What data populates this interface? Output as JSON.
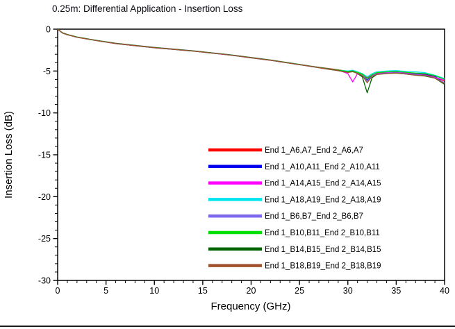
{
  "chart_data": {
    "type": "line",
    "title": "0.25m: Differential Application - Insertion Loss",
    "xlabel": "Frequency (GHz)",
    "ylabel": "Insertion Loss (dB)",
    "xlim": [
      0,
      40
    ],
    "ylim": [
      -30,
      0
    ],
    "xticks": [
      0,
      5,
      10,
      15,
      20,
      25,
      30,
      35,
      40
    ],
    "yticks": [
      0,
      -5,
      -10,
      -15,
      -20,
      -25,
      -30
    ],
    "x_minor_step": 1,
    "y_minor_step": 1,
    "grid": false,
    "legend_position": "inside-bottom-right",
    "background_color": "#ffffff",
    "axis_color": "#000000",
    "x": [
      0,
      0.5,
      1,
      2,
      4,
      6,
      8,
      10,
      12,
      14,
      16,
      18,
      20,
      22,
      24,
      26,
      28,
      29,
      30,
      30.5,
      31,
      31.5,
      32,
      32.5,
      33,
      34,
      35,
      36,
      37,
      38,
      39,
      40
    ],
    "series": [
      {
        "name": "End 1_A6,A7_End 2_A6,A7",
        "color": "#ff0000",
        "values": [
          0,
          -0.45,
          -0.65,
          -0.95,
          -1.35,
          -1.7,
          -1.95,
          -2.2,
          -2.4,
          -2.6,
          -2.85,
          -3.1,
          -3.4,
          -3.7,
          -4.05,
          -4.4,
          -4.7,
          -4.85,
          -5.05,
          -4.95,
          -5.15,
          -5.35,
          -5.8,
          -5.45,
          -5.25,
          -5.15,
          -5.15,
          -5.25,
          -5.35,
          -5.45,
          -5.7,
          -6.2
        ]
      },
      {
        "name": "End 1_A10,A11_End 2_A10,A11",
        "color": "#0000ee",
        "values": [
          0,
          -0.46,
          -0.66,
          -0.96,
          -1.36,
          -1.72,
          -1.97,
          -2.22,
          -2.42,
          -2.62,
          -2.87,
          -3.12,
          -3.42,
          -3.72,
          -4.07,
          -4.42,
          -4.78,
          -4.95,
          -5.15,
          -5.05,
          -5.25,
          -5.45,
          -6.1,
          -5.55,
          -5.35,
          -5.25,
          -5.1,
          -5.2,
          -5.3,
          -5.35,
          -5.6,
          -6.5
        ]
      },
      {
        "name": "End 1_A14,A15_End 2_A14,A15",
        "color": "#ff00ff",
        "values": [
          0,
          -0.44,
          -0.64,
          -0.94,
          -1.34,
          -1.68,
          -1.93,
          -2.18,
          -2.38,
          -2.58,
          -2.83,
          -3.08,
          -3.38,
          -3.68,
          -4.03,
          -4.38,
          -4.72,
          -4.88,
          -5.3,
          -6.3,
          -5.3,
          -5.45,
          -5.9,
          -5.5,
          -5.3,
          -5.2,
          -5.15,
          -5.25,
          -5.4,
          -5.5,
          -5.75,
          -6.1
        ]
      },
      {
        "name": "End 1_A18,A19_End 2_A18,A19",
        "color": "#00e5ee",
        "values": [
          0,
          -0.45,
          -0.65,
          -0.95,
          -1.35,
          -1.7,
          -1.95,
          -2.2,
          -2.4,
          -2.6,
          -2.85,
          -3.1,
          -3.4,
          -3.7,
          -4.05,
          -4.4,
          -4.75,
          -4.9,
          -5.0,
          -4.9,
          -5.1,
          -5.3,
          -5.7,
          -5.3,
          -5.1,
          -5.0,
          -4.95,
          -5.05,
          -5.1,
          -5.2,
          -5.5,
          -5.9
        ]
      },
      {
        "name": "End 1_B6,B7_End 2_B6,B7",
        "color": "#7b68ee",
        "values": [
          0,
          -0.46,
          -0.66,
          -0.96,
          -1.36,
          -1.71,
          -1.96,
          -2.21,
          -2.41,
          -2.61,
          -2.86,
          -3.11,
          -3.41,
          -3.71,
          -4.06,
          -4.41,
          -4.76,
          -4.92,
          -5.12,
          -5.02,
          -5.22,
          -5.5,
          -6.2,
          -5.6,
          -5.35,
          -5.25,
          -5.2,
          -5.3,
          -5.45,
          -5.5,
          -5.8,
          -6.4
        ]
      },
      {
        "name": "End 1_B10,B11_End 2_B10,B11",
        "color": "#00dd00",
        "values": [
          0,
          -0.44,
          -0.64,
          -0.94,
          -1.34,
          -1.69,
          -1.94,
          -2.19,
          -2.39,
          -2.59,
          -2.84,
          -3.09,
          -3.39,
          -3.69,
          -4.04,
          -4.39,
          -4.74,
          -4.89,
          -5.08,
          -4.98,
          -5.18,
          -5.38,
          -5.9,
          -5.45,
          -5.2,
          -5.1,
          -5.05,
          -5.15,
          -5.25,
          -5.3,
          -5.55,
          -6.0
        ]
      },
      {
        "name": "End 1_B14,B15_End 2_B14,B15",
        "color": "#006400",
        "values": [
          0,
          -0.45,
          -0.65,
          -0.95,
          -1.35,
          -1.7,
          -1.95,
          -2.2,
          -2.4,
          -2.6,
          -2.85,
          -3.1,
          -3.4,
          -3.7,
          -4.05,
          -4.4,
          -4.77,
          -4.93,
          -5.15,
          -5.05,
          -5.3,
          -5.7,
          -7.6,
          -5.8,
          -5.4,
          -5.3,
          -5.25,
          -5.35,
          -5.5,
          -5.6,
          -5.85,
          -6.6
        ]
      },
      {
        "name": "End 1_B18,B19_End 2_B18,B19",
        "color": "#a0522d",
        "values": [
          0,
          -0.46,
          -0.67,
          -0.97,
          -1.37,
          -1.72,
          -1.97,
          -2.22,
          -2.42,
          -2.62,
          -2.87,
          -3.12,
          -3.42,
          -3.72,
          -4.07,
          -4.42,
          -4.79,
          -4.96,
          -5.18,
          -5.08,
          -5.28,
          -5.55,
          -6.4,
          -5.65,
          -5.4,
          -5.3,
          -5.25,
          -5.35,
          -5.5,
          -5.55,
          -5.85,
          -6.5
        ]
      }
    ]
  }
}
